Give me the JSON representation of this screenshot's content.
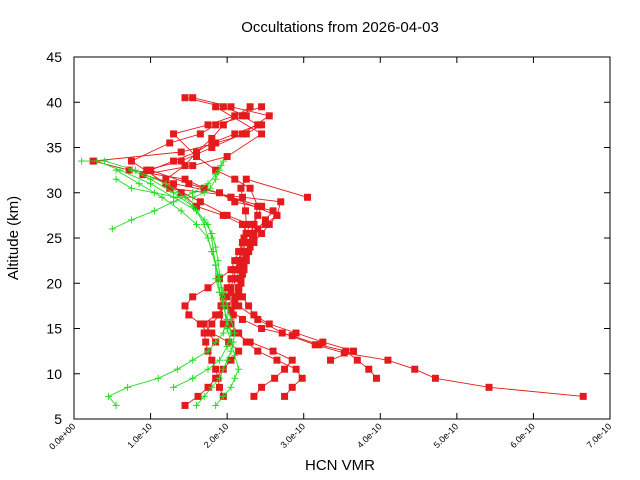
{
  "chart_data": {
    "type": "scatter",
    "title": "Occultations from 2026-04-03",
    "xlabel": "HCN VMR",
    "ylabel": "Altitude (km)",
    "xlim": [
      0,
      7e-10
    ],
    "ylim": [
      5,
      45
    ],
    "x_ticks": [
      "0.0e+00",
      "1.0e-10",
      "2.0e-10",
      "3.0e-10",
      "4.0e-10",
      "5.0e-10",
      "6.0e-10",
      "7.0e-10"
    ],
    "y_ticks": [
      "5",
      "10",
      "15",
      "20",
      "25",
      "30",
      "35",
      "40",
      "45"
    ],
    "grid": false,
    "legend": "none",
    "colors": {
      "red": "#e41a1c",
      "green": "#22dd22"
    },
    "series": [
      {
        "color": "red",
        "marker": "square",
        "profiles": [
          {
            "x": [
              6.65e-10,
              5.42e-10,
              4.72e-10,
              4.45e-10,
              4.1e-10,
              3.53e-10,
              3.15e-10,
              2.72e-10,
              2.4e-10,
              2.15e-10,
              2.05e-10,
              2.12e-10,
              2.18e-10,
              2.2e-10,
              2.22e-10,
              2.25e-10,
              2.24e-10,
              2.2e-10,
              2.18e-10,
              2.25e-10,
              3.05e-10
            ],
            "y": [
              7.5,
              8.5,
              9.5,
              10.5,
              11.5,
              12.3,
              13.2,
              14.5,
              16.0,
              17.5,
              19.0,
              20.5,
              22.0,
              23.5,
              25.0,
              26.5,
              28.0,
              29.5,
              30.5,
              31.5,
              29.5
            ]
          },
          {
            "x": [
              1.45e-10,
              1.62e-10,
              1.75e-10,
              1.85e-10,
              1.95e-10,
              2.05e-10,
              2.15e-10,
              2.02e-10,
              1.8e-10,
              1.7e-10,
              1.85e-10,
              2e-10,
              2.1e-10,
              2.15e-10,
              2.18e-10,
              2.2e-10,
              2.22e-10,
              2.25e-10,
              2.28e-10,
              2.3e-10,
              2.35e-10,
              2.4e-10,
              2.45e-10,
              2.05e-10,
              1.7e-10,
              1.45e-10,
              7.2e-11,
              2.5e-11,
              1.4e-10,
              1.85e-10,
              2.25e-10,
              2.45e-10
            ],
            "y": [
              6.5,
              7.5,
              8.5,
              9.5,
              10.5,
              11.5,
              12.5,
              13.5,
              14.5,
              15.5,
              16.5,
              17.5,
              18.5,
              19.5,
              20.5,
              21.5,
              22.5,
              23.5,
              24.5,
              25.5,
              26.5,
              27.5,
              28.5,
              29.5,
              30.5,
              31.5,
              32.5,
              33.5,
              34.5,
              35.5,
              36.5,
              37.5
            ]
          },
          {
            "x": [
              3.95e-10,
              3.85e-10,
              3.7e-10,
              3.55e-10,
              3.2e-10,
              2.85e-10,
              2.45e-10,
              2.2e-10,
              2.05e-10,
              2.1e-10,
              2.15e-10,
              2.18e-10,
              2.2e-10,
              2.22e-10,
              2.25e-10,
              2.3e-10,
              2.35e-10,
              2.4e-10,
              2.5e-10,
              2.6e-10,
              2.1e-10,
              1.9e-10,
              1.3e-10,
              9e-11,
              1.55e-10,
              2e-10,
              2.45e-10,
              1.85e-10
            ],
            "y": [
              9.5,
              10.5,
              11.5,
              12.5,
              13.2,
              14.2,
              15.0,
              16.0,
              17.0,
              18.0,
              19.0,
              20.0,
              21.0,
              22.0,
              23.0,
              24.0,
              25.0,
              26.0,
              27.0,
              28.0,
              29.0,
              30.0,
              31.0,
              32.0,
              33.0,
              34.0,
              36.5,
              39.5
            ]
          },
          {
            "x": [
              2.75e-10,
              2.85e-10,
              2.98e-10,
              2.9e-10,
              2.65e-10,
              2.4e-10,
              2.25e-10,
              2.15e-10,
              2.05e-10,
              2.08e-10,
              2.1e-10,
              2.12e-10,
              2.15e-10,
              2.18e-10,
              2.2e-10,
              2.22e-10,
              2.28e-10,
              2.35e-10,
              2.45e-10,
              2.55e-10,
              2.65e-10,
              2.7e-10,
              1.25e-10,
              9.5e-11,
              1.4e-10,
              1.8e-10,
              2.2e-10,
              2.55e-10,
              2.05e-10,
              1.55e-10
            ],
            "y": [
              7.5,
              8.5,
              9.5,
              10.5,
              11.5,
              12.5,
              13.5,
              14.5,
              15.5,
              16.5,
              17.5,
              18.5,
              19.5,
              20.5,
              21.5,
              22.5,
              23.5,
              24.5,
              25.5,
              26.5,
              27.5,
              29.0,
              30.5,
              32.5,
              33.5,
              35.0,
              36.5,
              38.5,
              39.5,
              40.5
            ]
          },
          {
            "x": [
              1.95e-10,
              1.9e-10,
              1.88e-10,
              1.85e-10,
              1.8e-10,
              1.75e-10,
              1.72e-10,
              1.7e-10,
              1.8e-10,
              1.9e-10,
              1.95e-10,
              2e-10,
              2.05e-10,
              2.08e-10,
              2.12e-10,
              2.15e-10,
              2.18e-10,
              2.2e-10,
              2.25e-10,
              2.3e-10,
              2e-10,
              1.65e-10,
              1.2e-10,
              7.5e-11,
              1.25e-10,
              1.65e-10,
              1.85e-10,
              2.25e-10,
              1.95e-10,
              1.45e-10
            ],
            "y": [
              7.5,
              8.5,
              9.5,
              10.5,
              11.5,
              12.5,
              13.5,
              14.5,
              15.5,
              16.5,
              17.5,
              18.5,
              19.5,
              20.5,
              21.5,
              22.5,
              23.5,
              24.5,
              25.5,
              26.5,
              27.5,
              29.0,
              31.0,
              33.5,
              35.5,
              36.5,
              37.5,
              38.5,
              39.5,
              40.5
            ]
          },
          {
            "x": [
              2.35e-10,
              2.45e-10,
              2.62e-10,
              2.75e-10,
              2.85e-10,
              2.6e-10,
              2.3e-10,
              2.1e-10,
              1.95e-10,
              1.9e-10,
              1.92e-10,
              1.95e-10,
              2e-10,
              2.05e-10,
              2.1e-10,
              2.15e-10,
              2.2e-10,
              2.25e-10,
              2.35e-10,
              2.5e-10,
              2.65e-10,
              2.05e-10,
              1.5e-10,
              1e-10,
              1.3e-10,
              1.6e-10,
              1.8e-10,
              2.1e-10,
              2.4e-10,
              2.2e-10
            ],
            "y": [
              7.5,
              8.5,
              9.5,
              10.5,
              11.5,
              12.5,
              13.5,
              14.5,
              15.5,
              16.5,
              17.5,
              18.5,
              19.5,
              20.5,
              21.5,
              22.5,
              23.5,
              24.5,
              25.5,
              26.5,
              27.5,
              29.5,
              31.0,
              32.5,
              33.5,
              34.5,
              35.5,
              36.5,
              37.5,
              38.5
            ]
          },
          {
            "x": [
              1.85e-10,
              1.75e-10,
              1.65e-10,
              1.5e-10,
              1.45e-10,
              1.55e-10,
              1.75e-10,
              1.9e-10,
              2.05e-10,
              2.1e-10,
              2.15e-10,
              2.2e-10,
              2.25e-10,
              2.2e-10,
              1.95e-10,
              1.6e-10,
              1.4e-10,
              1.2e-10,
              1.45e-10,
              1.6e-10,
              1.8e-10,
              1.95e-10,
              2.3e-10
            ],
            "y": [
              13.5,
              14.5,
              15.5,
              16.5,
              17.5,
              18.5,
              19.5,
              20.5,
              21.5,
              22.5,
              23.5,
              24.5,
              25.5,
              26.5,
              27.5,
              28.5,
              30.0,
              31.5,
              33.0,
              34.5,
              36.0,
              37.5,
              39.5
            ]
          },
          {
            "x": [
              3.35e-10,
              3.65e-10,
              3.25e-10,
              2.9e-10,
              2.55e-10,
              2.35e-10,
              2.28e-10,
              2.2e-10,
              2.15e-10,
              2.18e-10,
              2.22e-10,
              2.25e-10,
              2.28e-10,
              2.3e-10,
              2.32e-10,
              2.35e-10,
              2.4e-10,
              2.3e-10,
              2.1e-10,
              1.85e-10,
              1.6e-10,
              1.3e-10,
              1.75e-10,
              2.1e-10,
              2.45e-10
            ],
            "y": [
              11.5,
              12.5,
              13.5,
              14.5,
              15.5,
              16.5,
              17.5,
              18.5,
              19.5,
              20.5,
              21.5,
              22.5,
              23.5,
              24.5,
              25.5,
              26.5,
              28.5,
              30.5,
              31.5,
              32.5,
              34.0,
              36.5,
              37.5,
              38.5,
              39.5
            ]
          }
        ]
      },
      {
        "color": "green",
        "marker": "plus",
        "profiles": [
          {
            "x": [
              1.6e-10,
              1.7e-10,
              1.8e-10,
              1.9e-10,
              1.95e-10,
              2e-10,
              2.05e-10,
              2.08e-10,
              2.1e-10,
              2.05e-10,
              2e-10,
              1.95e-10,
              1.9e-10,
              1.85e-10,
              1.8e-10,
              1.75e-10,
              1.7e-10,
              1.6e-10,
              1.45e-10,
              1.2e-10,
              8e-11,
              4e-11,
              1e-11
            ],
            "y": [
              6.5,
              7.5,
              8.5,
              9.5,
              10.5,
              11.5,
              12.5,
              13.5,
              14.5,
              16.0,
              17.5,
              19.0,
              20.5,
              22.0,
              23.5,
              25.0,
              26.5,
              28.0,
              29.5,
              31.0,
              32.5,
              33.5,
              33.5
            ]
          },
          {
            "x": [
              5.5e-11,
              4.5e-11,
              7e-11,
              1.1e-10,
              1.35e-10,
              1.55e-10,
              1.75e-10,
              1.85e-10,
              1.95e-10,
              2e-10,
              1.95e-10,
              1.9e-10,
              1.88e-10,
              1.85e-10,
              1.82e-10,
              1.8e-10,
              1.75e-10,
              1.6e-10,
              1.3e-10,
              1e-10,
              6e-11,
              3e-11
            ],
            "y": [
              6.5,
              7.5,
              8.5,
              9.5,
              10.5,
              11.5,
              12.5,
              13.5,
              14.5,
              16.0,
              17.5,
              19.0,
              20.5,
              22.0,
              23.5,
              25.0,
              26.5,
              28.0,
              29.5,
              31.0,
              32.5,
              33.5
            ]
          },
          {
            "x": [
              1.85e-10,
              1.95e-10,
              2.05e-10,
              2.1e-10,
              2.15e-10,
              2.1e-10,
              2.05e-10,
              2e-10,
              1.98e-10,
              1.95e-10,
              1.92e-10,
              1.9e-10,
              1.88e-10,
              1.85e-10,
              1.8e-10,
              1.7e-10,
              1.55e-10,
              1.3e-10,
              1e-10,
              7.5e-11
            ],
            "y": [
              6.5,
              7.5,
              8.5,
              9.5,
              10.5,
              12.0,
              13.5,
              15.0,
              16.5,
              18.0,
              19.5,
              21.0,
              22.5,
              24.0,
              25.5,
              27.0,
              28.5,
              30.0,
              31.5,
              32.5
            ]
          },
          {
            "x": [
              1.3e-10,
              1.55e-10,
              1.75e-10,
              1.9e-10,
              2e-10,
              2.05e-10,
              2e-10,
              1.95e-10,
              1.9e-10,
              1.85e-10,
              1.85e-10,
              1.8e-10,
              1.75e-10,
              1.6e-10,
              1.4e-10,
              1.15e-10,
              8.5e-11,
              5.5e-11
            ],
            "y": [
              8.5,
              9.5,
              10.5,
              11.5,
              13.0,
              14.5,
              16.0,
              17.5,
              19.0,
              20.5,
              22.0,
              23.5,
              25.0,
              26.5,
              28.0,
              29.5,
              31.0,
              32.5
            ]
          },
          {
            "x": [
              5e-11,
              7.5e-11,
              1.05e-10,
              1.3e-10,
              1.55e-10,
              1.75e-10,
              1.85e-10,
              1.92e-10,
              1.95e-10,
              1.9e-10,
              1.85e-10,
              1.78e-10,
              1.7e-10,
              1.55e-10,
              1.35e-10,
              1.05e-10,
              7.5e-11,
              5.5e-11
            ],
            "y": [
              26.0,
              27.0,
              28.0,
              29.0,
              30.0,
              31.0,
              32.0,
              33.0,
              33.5,
              32.5,
              31.5,
              30.5,
              30.0,
              29.5,
              29.5,
              30.0,
              30.5,
              31.5
            ]
          }
        ]
      }
    ]
  }
}
